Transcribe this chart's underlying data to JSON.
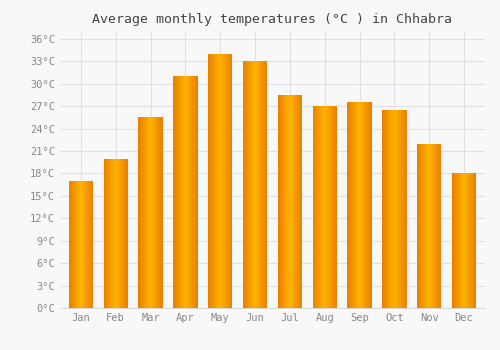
{
  "title": "Average monthly temperatures (°C ) in Chhabra",
  "months": [
    "Jan",
    "Feb",
    "Mar",
    "Apr",
    "May",
    "Jun",
    "Jul",
    "Aug",
    "Sep",
    "Oct",
    "Nov",
    "Dec"
  ],
  "temperatures": [
    17,
    20,
    25.5,
    31,
    34,
    33,
    28.5,
    27,
    27.5,
    26.5,
    22,
    18
  ],
  "bar_color_center": "#FFB300",
  "bar_color_edge": "#E88000",
  "ylim": [
    0,
    37
  ],
  "yticks": [
    0,
    3,
    6,
    9,
    12,
    15,
    18,
    21,
    24,
    27,
    30,
    33,
    36
  ],
  "ytick_labels": [
    "0°C",
    "3°C",
    "6°C",
    "9°C",
    "12°C",
    "15°C",
    "18°C",
    "21°C",
    "24°C",
    "27°C",
    "30°C",
    "33°C",
    "36°C"
  ],
  "bg_color": "#f8f8f8",
  "grid_color": "#e0e0e8",
  "title_fontsize": 9.5,
  "tick_fontsize": 7.5,
  "title_color": "#444444",
  "tick_color": "#888888",
  "figsize": [
    5.0,
    3.5
  ],
  "dpi": 100
}
